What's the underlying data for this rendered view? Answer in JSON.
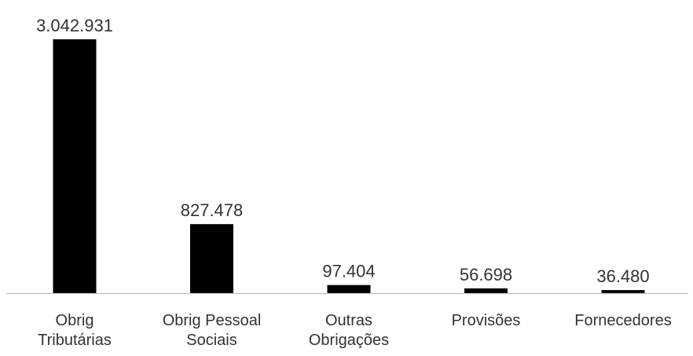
{
  "chart_data": {
    "type": "bar",
    "categories": [
      [
        "Obrig",
        "Tributárias"
      ],
      [
        "Obrig Pessoal",
        "Sociais"
      ],
      [
        "Outras",
        "Obrigações"
      ],
      [
        "Provisões"
      ],
      [
        "Fornecedores"
      ]
    ],
    "values": [
      3042931,
      827478,
      97404,
      56698,
      36480
    ],
    "value_labels": [
      "3.042.931",
      "827.478",
      "97.404",
      "56.698",
      "36.480"
    ],
    "title": "",
    "xlabel": "",
    "ylabel": "",
    "ylim": [
      0,
      3042931
    ],
    "grid": false,
    "legend": "none",
    "bar_color": "#000000",
    "axis_color": "#bfbfbf",
    "label_color": "#333333"
  }
}
